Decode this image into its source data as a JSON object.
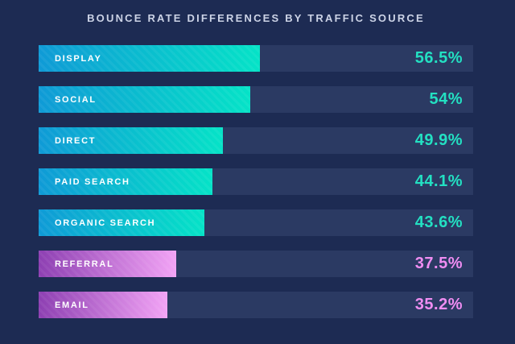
{
  "chart_data": {
    "type": "bar",
    "orientation": "horizontal",
    "title": "BOUNCE RATE DIFFERENCES BY TRAFFIC SOURCE",
    "categories": [
      "DISPLAY",
      "SOCIAL",
      "DIRECT",
      "PAID SEARCH",
      "ORGANIC SEARCH",
      "REFERRAL",
      "EMAIL"
    ],
    "values": [
      56.5,
      54,
      49.9,
      44.1,
      43.6,
      37.5,
      35.2
    ],
    "unit": "%",
    "legend": "none",
    "grid": "off",
    "axis_labels": "none",
    "rows": [
      {
        "label": "DISPLAY",
        "value": 56.5,
        "display": "56.5%",
        "theme": "teal",
        "bar_width_pct": 50.9
      },
      {
        "label": "SOCIAL",
        "value": 54,
        "display": "54%",
        "theme": "teal",
        "bar_width_pct": 48.7
      },
      {
        "label": "DIRECT",
        "value": 49.9,
        "display": "49.9%",
        "theme": "teal",
        "bar_width_pct": 42.4
      },
      {
        "label": "PAID SEARCH",
        "value": 44.1,
        "display": "44.1%",
        "theme": "teal",
        "bar_width_pct": 40.0
      },
      {
        "label": "ORGANIC SEARCH",
        "value": 43.6,
        "display": "43.6%",
        "theme": "teal",
        "bar_width_pct": 38.1
      },
      {
        "label": "REFERRAL",
        "value": 37.5,
        "display": "37.5%",
        "theme": "purple",
        "bar_width_pct": 31.7
      },
      {
        "label": "EMAIL",
        "value": 35.2,
        "display": "35.2%",
        "theme": "purple",
        "bar_width_pct": 29.6
      }
    ]
  },
  "colors": {
    "background": "#1d2b53",
    "track": "#2b3a63",
    "title_text": "#ccd3e6",
    "label_text": "#ffffff",
    "themes": {
      "teal": {
        "gradient_start": "#0f9ad6",
        "gradient_end": "#05e3c7",
        "value_text": "#23e0c2"
      },
      "purple": {
        "gradient_start": "#8d3fb2",
        "gradient_end": "#f2a3f5",
        "value_text": "#ef8df2"
      }
    }
  }
}
